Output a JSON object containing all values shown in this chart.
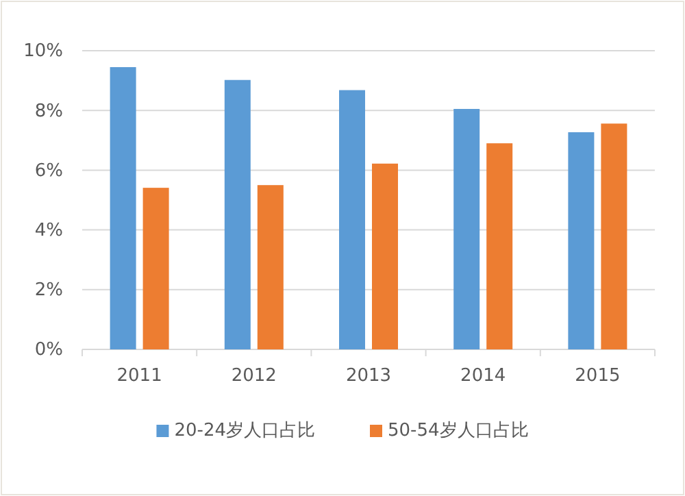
{
  "chart_data": {
    "type": "bar",
    "categories": [
      "2011",
      "2012",
      "2013",
      "2014",
      "2015"
    ],
    "series": [
      {
        "name": "20-24岁人口占比",
        "color": "#5b9bd5",
        "values": [
          9.45,
          9.02,
          8.68,
          8.05,
          7.27
        ]
      },
      {
        "name": "50-54岁人口占比",
        "color": "#ed7d31",
        "values": [
          5.41,
          5.5,
          6.22,
          6.9,
          7.56
        ]
      }
    ],
    "ylim": [
      0,
      10
    ],
    "yticks": [
      {
        "value": 0,
        "label": "0%"
      },
      {
        "value": 2,
        "label": "2%"
      },
      {
        "value": 4,
        "label": "4%"
      },
      {
        "value": 6,
        "label": "6%"
      },
      {
        "value": 8,
        "label": "8%"
      },
      {
        "value": 10,
        "label": "10%"
      }
    ],
    "grid": "y",
    "legend": "bottom"
  }
}
